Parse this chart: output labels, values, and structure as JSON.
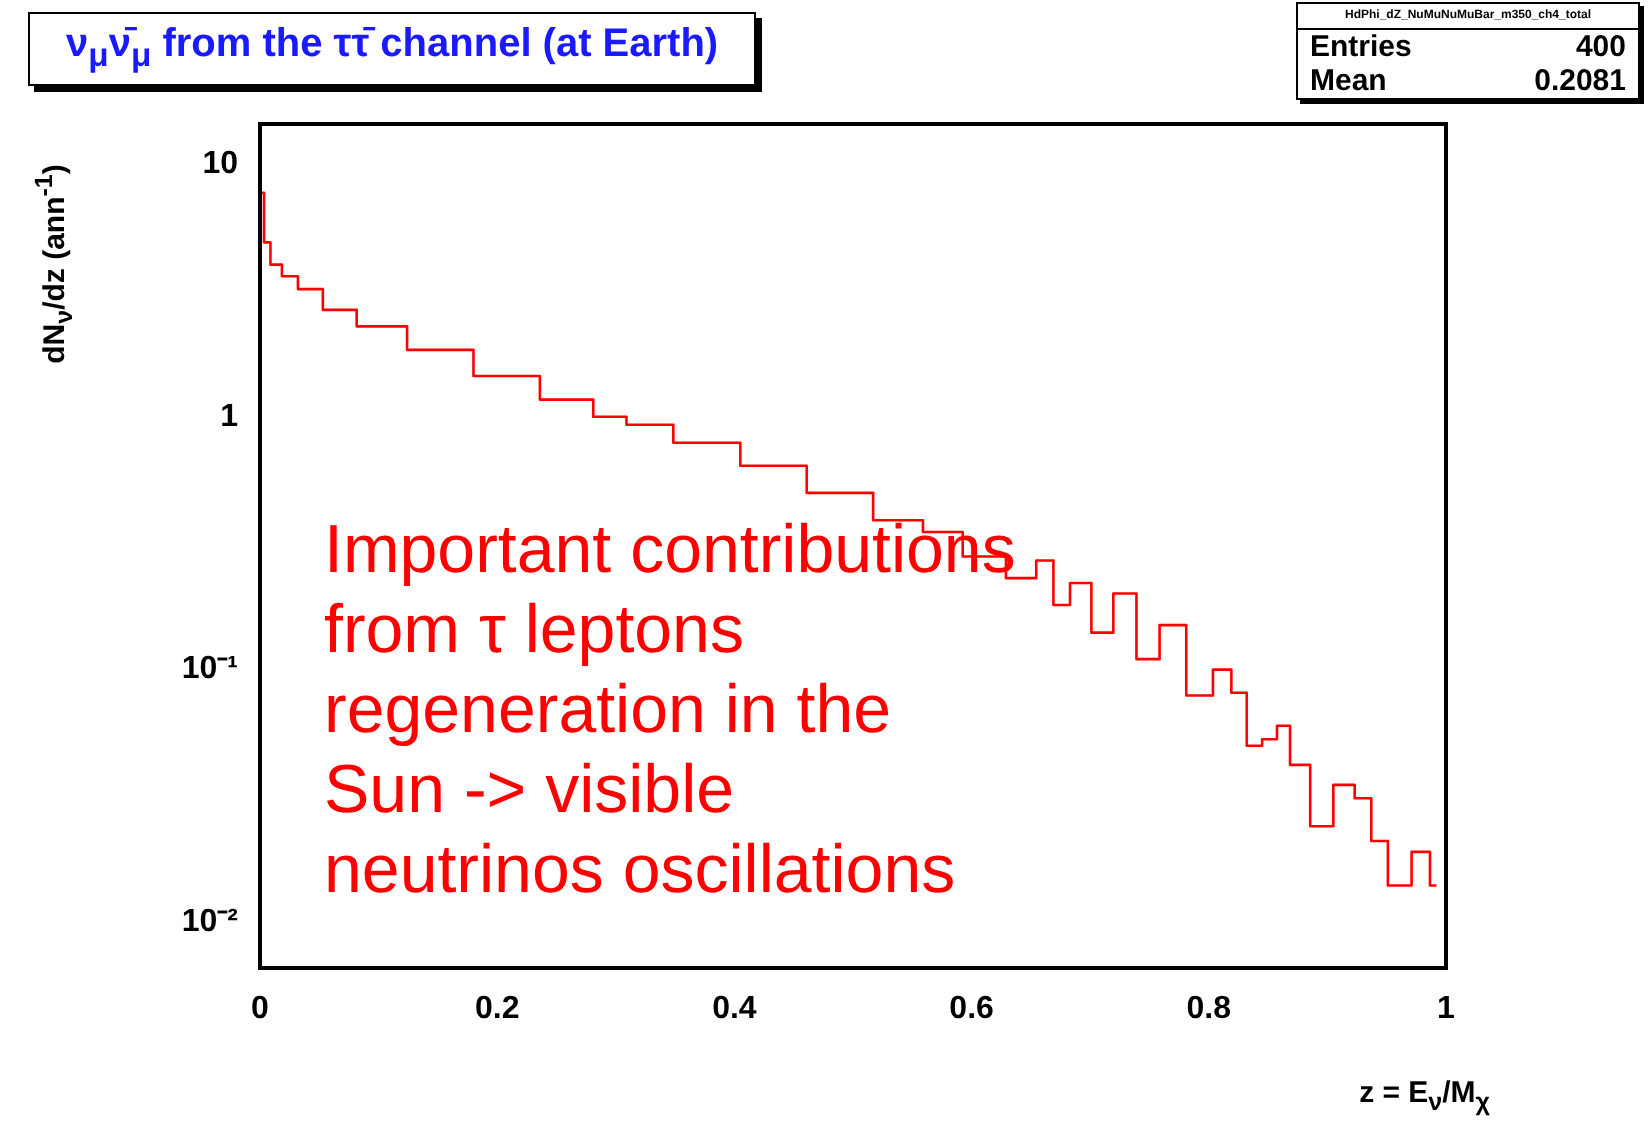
{
  "chart_data": {
    "type": "step",
    "title": "ν$_{μ}$ν̄$_{μ}$ from the ττ̄ channel (at Earth)",
    "xlabel": "z = E$_{ν}$/M$_{χ}$",
    "ylabel": "dN$_{ν}$/dz (ann$^{-1}$)",
    "x": [
      0.0012,
      0.0056,
      0.012,
      0.025,
      0.039,
      0.067,
      0.096,
      0.152,
      0.208,
      0.264,
      0.298,
      0.32,
      0.377,
      0.433,
      0.489,
      0.545,
      0.573,
      0.612,
      0.646,
      0.663,
      0.675,
      0.691,
      0.711,
      0.728,
      0.75,
      0.767,
      0.795,
      0.812,
      0.826,
      0.838,
      0.852,
      0.863,
      0.874,
      0.897,
      0.913,
      0.933,
      0.941,
      0.961,
      0.981,
      0.992
    ],
    "series": [
      {
        "color": "#ff0000",
        "values": [
          7.7,
          4.9,
          4.0,
          3.6,
          3.2,
          2.65,
          2.28,
          1.84,
          1.45,
          1.17,
          1.0,
          0.93,
          0.79,
          0.64,
          0.5,
          0.39,
          0.35,
          0.28,
          0.23,
          0.27,
          0.18,
          0.22,
          0.14,
          0.2,
          0.11,
          0.15,
          0.079,
          0.1,
          0.081,
          0.05,
          0.053,
          0.06,
          0.042,
          0.024,
          0.035,
          0.031,
          0.021,
          0.014,
          0.019,
          0.014
        ]
      }
    ],
    "log": "y",
    "xlim": [
      0,
      1
    ],
    "ylim": [
      0.0066,
      14.4
    ],
    "xticks": [
      0,
      0.2,
      0.4,
      0.6,
      0.8,
      1
    ],
    "yticks": [
      {
        "value": 0.01,
        "label": "10⁻²"
      },
      {
        "value": 0.1,
        "label": "10⁻¹"
      },
      1,
      10
    ],
    "grid": false,
    "legend": false,
    "line_style": "solid",
    "marker": "none",
    "annotations": [
      "Important contributions\nfrom τ leptons\nregeneration in the\nSun -> visible\nneutrinos oscillations",
      "HdPhi_dZ_NuMuNuMuBar_m350_ch4_total",
      "Entries 400",
      "Mean 0.2081"
    ]
  }
}
